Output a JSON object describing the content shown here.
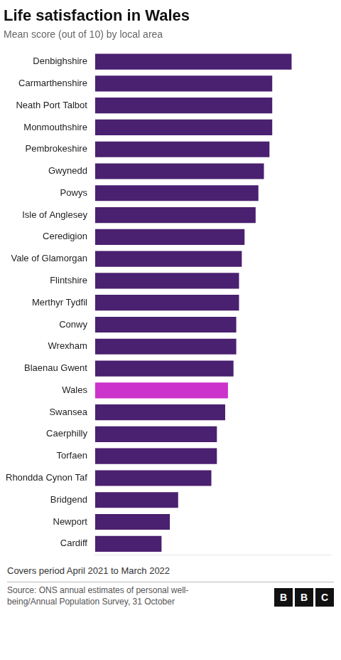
{
  "chart_data": {
    "type": "bar",
    "orientation": "horizontal",
    "title": "Life satisfaction in Wales",
    "subtitle": "Mean score (out of 10) by local area",
    "footnote": "Covers period April 2021 to March 2022",
    "source": "Source: ONS annual estimates of personal well-\nbeing/Annual Population Survey, 31 October",
    "logo": "BBC",
    "categories": [
      "Denbighshire",
      "Carmarthenshire",
      "Neath Port Talbot",
      "Monmouthshire",
      "Pembrokeshire",
      "Gwynedd",
      "Powys",
      "Isle of Anglesey",
      "Ceredigion",
      "Vale of Glamorgan",
      "Flintshire",
      "Merthyr Tydfil",
      "Conwy",
      "Wrexham",
      "Blaenau Gwent",
      "Wales",
      "Swansea",
      "Caerphilly",
      "Torfaen",
      "Rhondda Cynon Taf",
      "Bridgend",
      "Newport",
      "Cardiff"
    ],
    "values": [
      7.71,
      7.64,
      7.64,
      7.64,
      7.63,
      7.61,
      7.59,
      7.58,
      7.54,
      7.53,
      7.52,
      7.52,
      7.51,
      7.51,
      7.5,
      7.48,
      7.47,
      7.44,
      7.44,
      7.42,
      7.3,
      7.27,
      7.24
    ],
    "colors": [
      "#4a2070",
      "#4a2070",
      "#4a2070",
      "#4a2070",
      "#4a2070",
      "#4a2070",
      "#4a2070",
      "#4a2070",
      "#4a2070",
      "#4a2070",
      "#4a2070",
      "#4a2070",
      "#4a2070",
      "#4a2070",
      "#4a2070",
      "#cc33cc",
      "#4a2070",
      "#4a2070",
      "#4a2070",
      "#4a2070",
      "#4a2070",
      "#4a2070",
      "#4a2070"
    ],
    "xlim": [
      7.0,
      7.85
    ],
    "grid": false,
    "tick_labels": "y"
  }
}
